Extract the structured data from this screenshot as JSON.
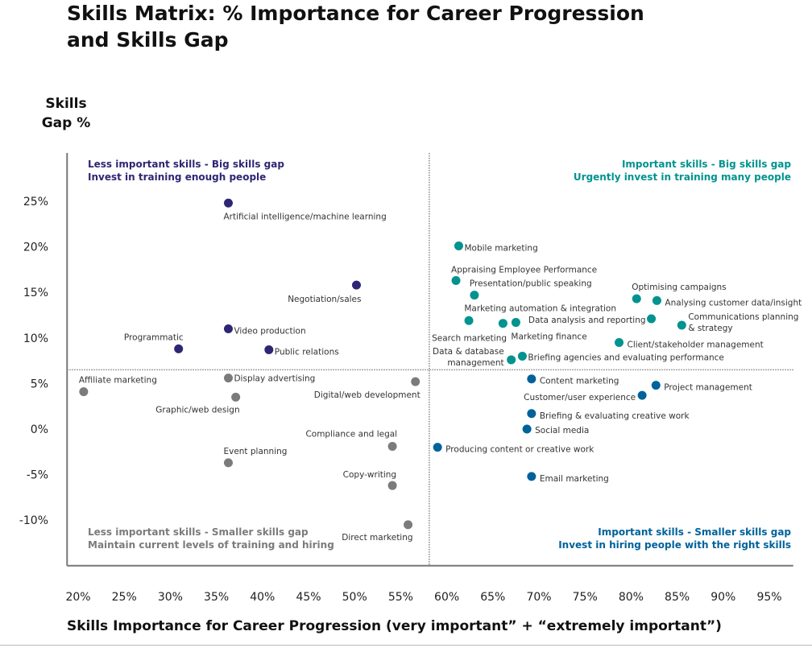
{
  "chart_data": {
    "type": "scatter",
    "title": "Skills Matrix: % Importance for Career Progression and Skills Gap",
    "title_lines": [
      "Skills Matrix: % Importance for Career Progression",
      "and Skills Gap"
    ],
    "ylabel": "Skills Gap %",
    "ylabel_lines": [
      "Skills",
      "Gap %"
    ],
    "xlabel": "Skills Importance for Career Progression (very important” + “extremely important”)",
    "xlim": [
      18.8,
      97.6
    ],
    "ylim": [
      -15,
      30.3
    ],
    "x_ticks": [
      20,
      25,
      30,
      35,
      40,
      45,
      50,
      55,
      60,
      65,
      70,
      75,
      80,
      85,
      90,
      95
    ],
    "x_tick_labels": [
      "20%",
      "25%",
      "30%",
      "35%",
      "40%",
      "45%",
      "50%",
      "55%",
      "60%",
      "65%",
      "70%",
      "75%",
      "80%",
      "85%",
      "90%",
      "95%"
    ],
    "y_ticks": [
      25,
      20,
      15,
      10,
      5,
      0,
      -5,
      -10
    ],
    "y_tick_labels": [
      "25%",
      "20%",
      "15%",
      "10%",
      "5%",
      "0%",
      "-5%",
      "-10%"
    ],
    "grid": false,
    "quadrant_dividers": {
      "x": 58.1,
      "y": 6.5
    },
    "colors": {
      "less_important_big_gap": "#2e2673",
      "important_big_gap": "#00938f",
      "less_important_small_gap": "#7b7b7b",
      "important_small_gap": "#00629b"
    },
    "quadrants": [
      {
        "key": "less_important_big_gap",
        "lines": [
          "Less important skills - Big skills gap",
          "Invest in training enough people"
        ],
        "placement": "top-left"
      },
      {
        "key": "important_big_gap",
        "lines": [
          "Important skills - Big skills gap",
          "Urgently invest in training many people"
        ],
        "placement": "top-right"
      },
      {
        "key": "less_important_small_gap",
        "lines": [
          "Less important skills - Smaller skills gap",
          "Maintain current levels of training and hiring"
        ],
        "placement": "bottom-left"
      },
      {
        "key": "important_small_gap",
        "lines": [
          "Important skills - Smaller skills gap",
          "Invest in hiring people with the right skills"
        ],
        "placement": "bottom-right"
      }
    ],
    "points": [
      {
        "label": "Artificial intelligence/machine learning",
        "x": 36.3,
        "y": 24.8,
        "group": "less_important_big_gap"
      },
      {
        "label": "Negotiation/sales",
        "x": 50.2,
        "y": 15.8,
        "group": "less_important_big_gap"
      },
      {
        "label": "Video production",
        "x": 36.3,
        "y": 11.0,
        "group": "less_important_big_gap"
      },
      {
        "label": "Programmatic",
        "x": 30.9,
        "y": 8.8,
        "group": "less_important_big_gap"
      },
      {
        "label": "Public relations",
        "x": 40.7,
        "y": 8.7,
        "group": "less_important_big_gap"
      },
      {
        "label": "Affiliate marketing",
        "x": 20.6,
        "y": 4.1,
        "group": "less_important_small_gap"
      },
      {
        "label": "Display advertising",
        "x": 36.3,
        "y": 5.6,
        "group": "less_important_small_gap"
      },
      {
        "label": "Graphic/web design",
        "x": 37.1,
        "y": 3.5,
        "group": "less_important_small_gap"
      },
      {
        "label": "Digital/web development",
        "x": 56.6,
        "y": 5.2,
        "group": "less_important_small_gap"
      },
      {
        "label": "Compliance and legal",
        "x": 54.1,
        "y": -1.9,
        "group": "less_important_small_gap"
      },
      {
        "label": "Event planning",
        "x": 36.3,
        "y": -3.7,
        "group": "less_important_small_gap"
      },
      {
        "label": "Copy-writing",
        "x": 54.1,
        "y": -6.2,
        "group": "less_important_small_gap"
      },
      {
        "label": "Direct marketing",
        "x": 55.8,
        "y": -10.5,
        "group": "less_important_small_gap"
      },
      {
        "label": "Mobile marketing",
        "x": 61.3,
        "y": 20.1,
        "group": "important_big_gap"
      },
      {
        "label": "Appraising Employee Performance",
        "x": 61.0,
        "y": 16.3,
        "group": "important_big_gap"
      },
      {
        "label": "Presentation/public speaking",
        "x": 63.0,
        "y": 14.7,
        "group": "important_big_gap"
      },
      {
        "label": "Search marketing",
        "x": 62.4,
        "y": 11.9,
        "group": "important_big_gap"
      },
      {
        "label": "Marketing automation & integration",
        "x": 66.1,
        "y": 11.6,
        "group": "important_big_gap"
      },
      {
        "label": "Marketing finance",
        "x": 67.5,
        "y": 11.7,
        "group": "important_big_gap"
      },
      {
        "label": "Data & database management",
        "label_lines": [
          "Data & database",
          "management"
        ],
        "x": 67.0,
        "y": 7.6,
        "group": "important_big_gap"
      },
      {
        "label": "Briefing agencies and evaluating performance",
        "x": 68.2,
        "y": 8.0,
        "group": "important_big_gap"
      },
      {
        "label": "Client/stakeholder management",
        "x": 78.7,
        "y": 9.5,
        "group": "important_big_gap"
      },
      {
        "label": "Data analysis and reporting",
        "x": 82.2,
        "y": 12.1,
        "group": "important_big_gap"
      },
      {
        "label": "Optimising campaigns",
        "x": 80.6,
        "y": 14.3,
        "group": "important_big_gap"
      },
      {
        "label": "Analysing customer data/insight",
        "x": 82.8,
        "y": 14.1,
        "group": "important_big_gap"
      },
      {
        "label": "Communications planning & strategy",
        "label_lines": [
          "Communications planning",
          "& strategy"
        ],
        "x": 85.5,
        "y": 11.4,
        "group": "important_big_gap"
      },
      {
        "label": "Content marketing",
        "x": 69.2,
        "y": 5.5,
        "group": "important_small_gap"
      },
      {
        "label": "Project management",
        "x": 82.7,
        "y": 4.8,
        "group": "important_small_gap"
      },
      {
        "label": "Customer/user experience",
        "x": 81.2,
        "y": 3.7,
        "group": "important_small_gap"
      },
      {
        "label": "Briefing & evaluating creative work",
        "x": 69.2,
        "y": 1.7,
        "group": "important_small_gap"
      },
      {
        "label": "Social media",
        "x": 68.7,
        "y": 0.0,
        "group": "important_small_gap"
      },
      {
        "label": "Producing content or creative work",
        "x": 59.0,
        "y": -2.0,
        "group": "important_small_gap"
      },
      {
        "label": "Email marketing",
        "x": 69.2,
        "y": -5.2,
        "group": "important_small_gap"
      }
    ]
  }
}
